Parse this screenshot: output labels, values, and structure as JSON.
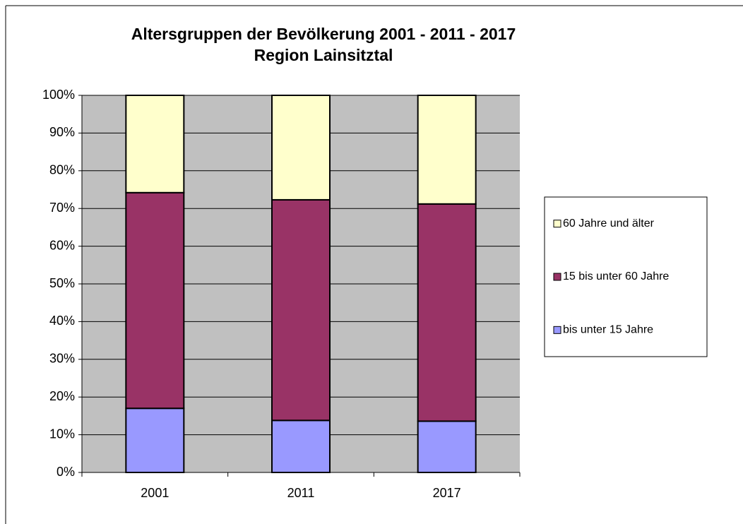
{
  "chart_data": {
    "type": "stacked_bar_100",
    "title": "Altersgruppen der Bevölkerung 2001 - 2011 - 2017",
    "subtitle": "Region Lainsitztal",
    "categories": [
      "2001",
      "2011",
      "2017"
    ],
    "series": [
      {
        "name": "bis unter 15 Jahre",
        "color": "#9999ff",
        "values": [
          17.0,
          13.8,
          13.6
        ]
      },
      {
        "name": "15 bis unter 60 Jahre",
        "color": "#993366",
        "values": [
          57.2,
          58.5,
          57.6
        ]
      },
      {
        "name": "60 Jahre und älter",
        "color": "#ffffcc",
        "values": [
          25.8,
          27.7,
          28.8
        ]
      }
    ],
    "ylim": [
      0,
      100
    ],
    "yticks": [
      {
        "value": 0,
        "label": "0%"
      },
      {
        "value": 10,
        "label": "10%"
      },
      {
        "value": 20,
        "label": "20%"
      },
      {
        "value": 30,
        "label": "30%"
      },
      {
        "value": 40,
        "label": "40%"
      },
      {
        "value": 50,
        "label": "50%"
      },
      {
        "value": 60,
        "label": "60%"
      },
      {
        "value": 70,
        "label": "70%"
      },
      {
        "value": 80,
        "label": "80%"
      },
      {
        "value": 90,
        "label": "90%"
      },
      {
        "value": 100,
        "label": "100%"
      }
    ],
    "grid": true,
    "legend": "right"
  }
}
